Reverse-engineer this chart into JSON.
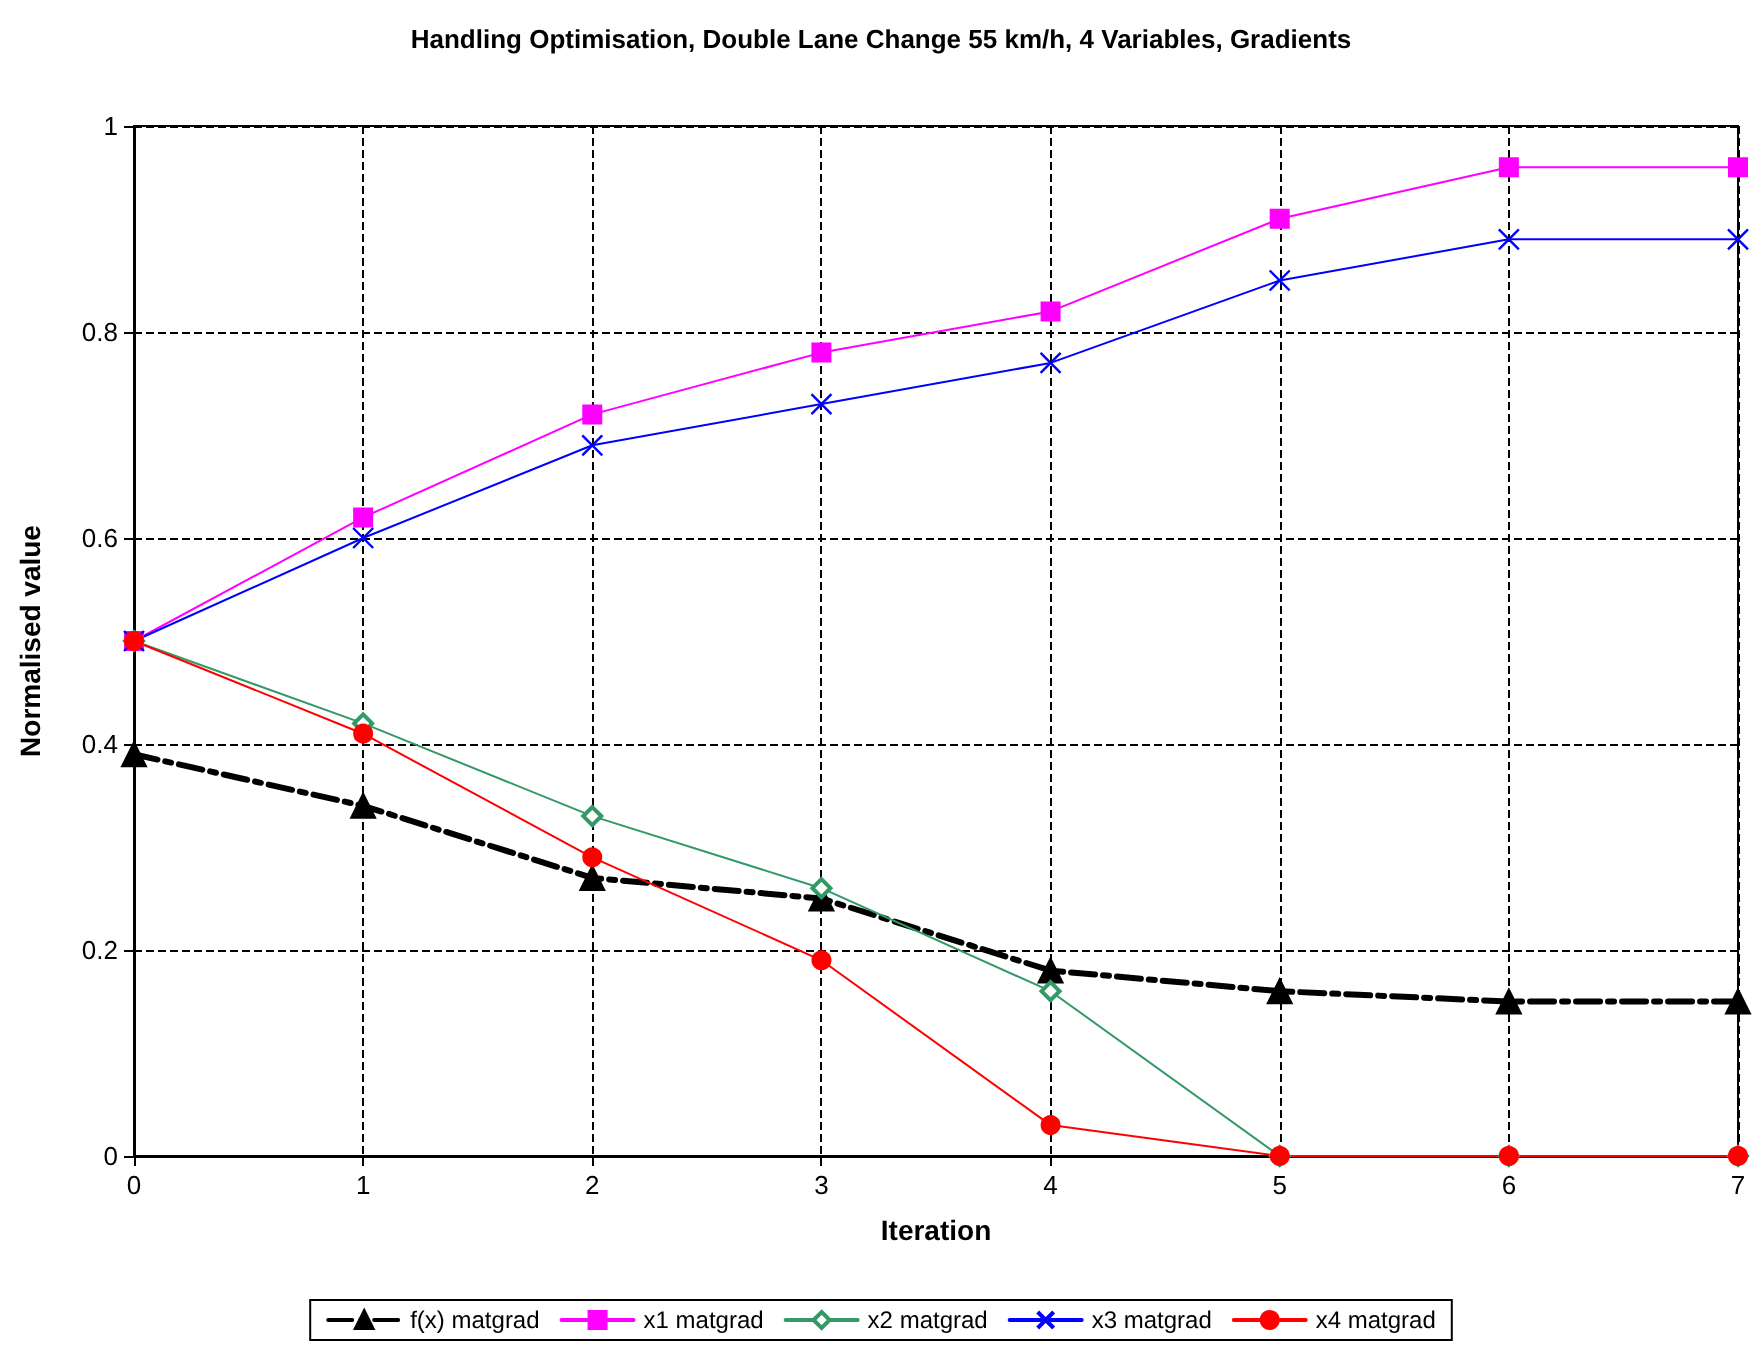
{
  "chart_data": {
    "type": "line",
    "title": "Handling Optimisation, Double Lane Change 55 km/h, 4 Variables, Gradients",
    "xlabel": "Iteration",
    "ylabel": "Normalised value",
    "x": [
      0,
      1,
      2,
      3,
      4,
      5,
      6,
      7
    ],
    "series": [
      {
        "name": "f(x) matgrad",
        "color": "#000000",
        "marker": "triangle",
        "line_style": "dashdot",
        "values": [
          0.39,
          0.34,
          0.27,
          0.25,
          0.18,
          0.16,
          0.15,
          0.15
        ]
      },
      {
        "name": "x1 matgrad",
        "color": "#ff00ff",
        "marker": "square",
        "line_style": "solid",
        "values": [
          0.5,
          0.62,
          0.72,
          0.78,
          0.82,
          0.91,
          0.96,
          0.96
        ]
      },
      {
        "name": "x2 matgrad",
        "color": "#339966",
        "marker": "diamond",
        "line_style": "solid",
        "values": [
          0.5,
          0.42,
          0.33,
          0.26,
          0.16,
          0,
          0,
          0
        ]
      },
      {
        "name": "x3 matgrad",
        "color": "#0000ff",
        "marker": "cross",
        "line_style": "solid",
        "values": [
          0.5,
          0.6,
          0.69,
          0.73,
          0.77,
          0.85,
          0.89,
          0.89
        ]
      },
      {
        "name": "x4 matgrad",
        "color": "#ff0000",
        "marker": "circle",
        "line_style": "solid",
        "values": [
          0.5,
          0.41,
          0.29,
          0.19,
          0.03,
          0,
          0,
          0
        ]
      }
    ],
    "xlim": [
      0,
      7
    ],
    "xticks": [
      0,
      1,
      2,
      3,
      4,
      5,
      6,
      7
    ],
    "ylim": [
      0,
      1
    ],
    "yticks": [
      0,
      0.2,
      0.4,
      0.6,
      0.8,
      1
    ],
    "grid": true,
    "legend": "bottom"
  }
}
